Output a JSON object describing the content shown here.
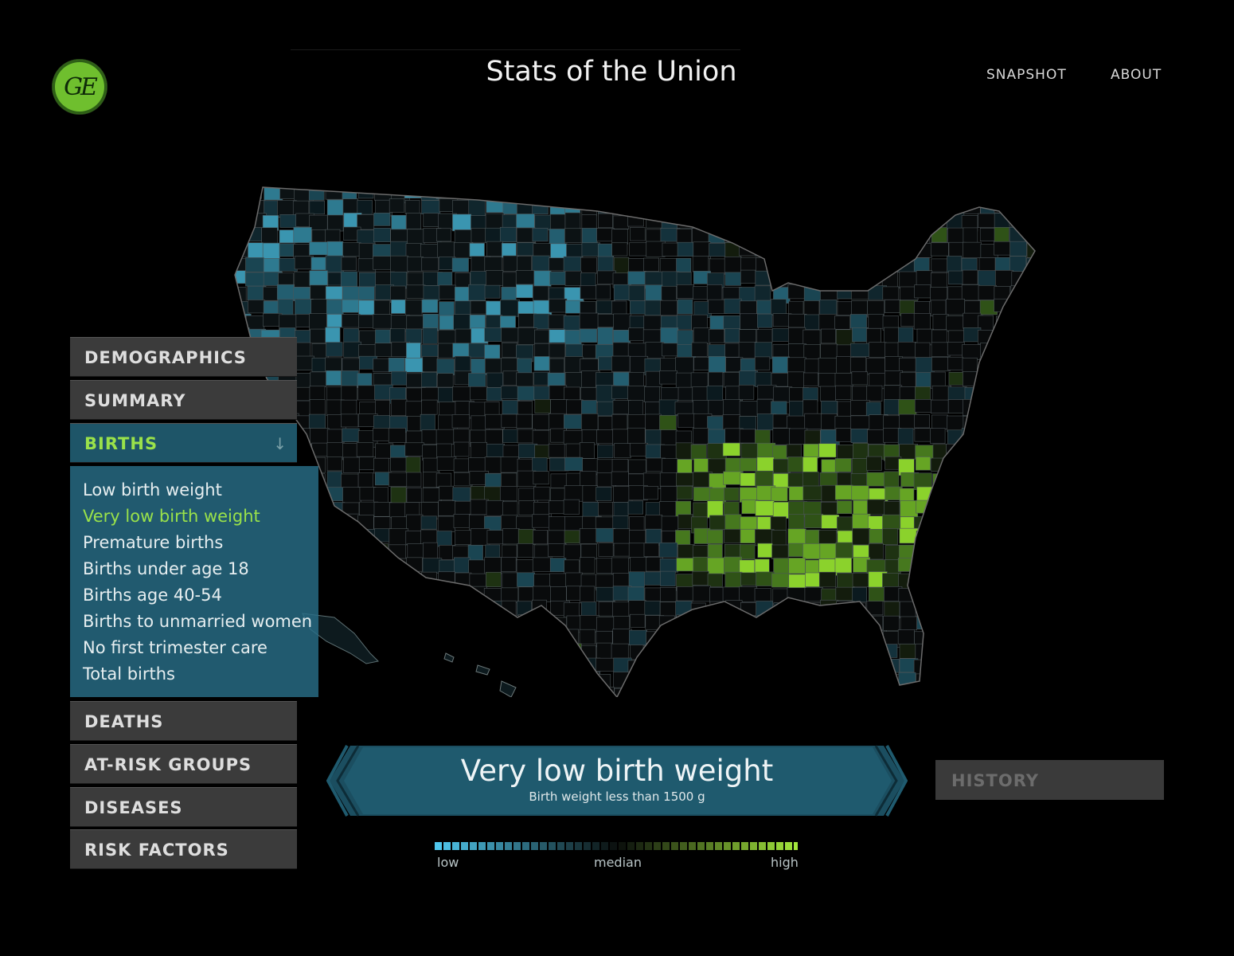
{
  "header": {
    "logo_text": "GE",
    "title": "Stats of the Union",
    "nav": [
      {
        "label": "SNAPSHOT"
      },
      {
        "label": "ABOUT"
      }
    ]
  },
  "menu": {
    "categories": [
      {
        "label": "DEMOGRAPHICS",
        "expanded": false
      },
      {
        "label": "SUMMARY",
        "expanded": false
      },
      {
        "label": "BIRTHS",
        "expanded": true,
        "arrow": "↓"
      },
      {
        "label": "DEATHS",
        "expanded": false
      },
      {
        "label": "AT-RISK GROUPS",
        "expanded": false
      },
      {
        "label": "DISEASES",
        "expanded": false
      },
      {
        "label": "RISK FACTORS",
        "expanded": false
      }
    ],
    "submenu": [
      {
        "label": "Low birth weight"
      },
      {
        "label": "Very low birth weight"
      },
      {
        "label": "Premature births"
      },
      {
        "label": "Births under age 18"
      },
      {
        "label": "Births age 40-54"
      },
      {
        "label": "Births to unmarried women"
      },
      {
        "label": "No first trimester care"
      },
      {
        "label": "Total births"
      }
    ],
    "selected_submenu": "Very low birth weight"
  },
  "banner": {
    "title": "Very low birth weight",
    "subtitle": "Birth weight less than 1500 g"
  },
  "history": {
    "label": "HISTORY"
  },
  "legend": {
    "low": "low",
    "median": "median",
    "high": "high",
    "low_color": "#4fc6ec",
    "high_color": "#a4e83c"
  },
  "colors": {
    "background": "#000000",
    "menu_bg": "#3b3b3b",
    "active_bg": "#1e5568",
    "accent_green": "#9ae24a",
    "banner_bg": "#1e5568"
  }
}
